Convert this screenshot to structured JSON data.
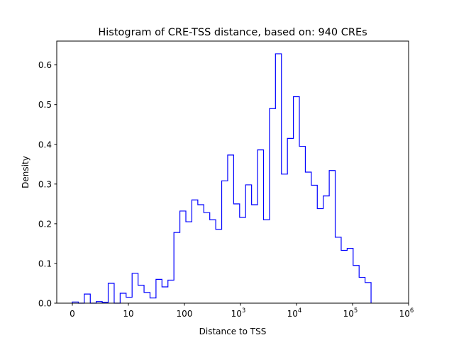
{
  "chart_data": {
    "type": "histogram-step",
    "title": "Histogram of CRE-TSS distance, based on: 940 CREs",
    "xlabel": "Distance to TSS",
    "ylabel": "Density",
    "x_scale": "symlog (tick positions: 0, 10, 100, 10^3 ... 10^6 equally spaced)",
    "x_ticks": [
      {
        "base": "0",
        "exp": ""
      },
      {
        "base": "10",
        "exp": ""
      },
      {
        "base": "100",
        "exp": ""
      },
      {
        "base": "10",
        "exp": "3"
      },
      {
        "base": "10",
        "exp": "4"
      },
      {
        "base": "10",
        "exp": "5"
      },
      {
        "base": "10",
        "exp": "6"
      }
    ],
    "x_range_ticks": [
      -0.27,
      6
    ],
    "bin_start_tick": 0,
    "bin_width_tick": 0.1066,
    "y_ticks": [
      "0.0",
      "0.1",
      "0.2",
      "0.3",
      "0.4",
      "0.5",
      "0.6"
    ],
    "ylim": [
      0,
      0.66
    ],
    "color": "#0000ff",
    "values": [
      0.003,
      0,
      0.023,
      0,
      0.004,
      0.002,
      0.05,
      0,
      0.025,
      0.015,
      0.075,
      0.045,
      0.027,
      0.013,
      0.06,
      0.041,
      0.058,
      0.178,
      0.232,
      0.205,
      0.26,
      0.248,
      0.228,
      0.21,
      0.186,
      0.308,
      0.373,
      0.25,
      0.216,
      0.298,
      0.248,
      0.386,
      0.21,
      0.49,
      0.628,
      0.325,
      0.415,
      0.52,
      0.395,
      0.33,
      0.297,
      0.238,
      0.27,
      0.334,
      0.166,
      0.133,
      0.138,
      0.095,
      0.065,
      0.052
    ]
  }
}
